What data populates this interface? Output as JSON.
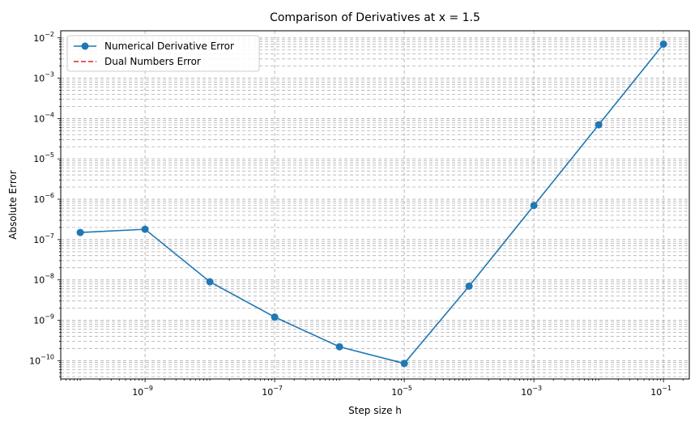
{
  "chart_data": {
    "type": "line",
    "title": "Comparison of Derivatives at x = 1.5",
    "xlabel": "Step size h",
    "ylabel": "Absolute Error",
    "xscale": "log",
    "yscale": "log",
    "xlim": [
      5e-11,
      0.25
    ],
    "ylim": [
      3.5e-11,
      0.015
    ],
    "grid": true,
    "legend_position": "top-left",
    "x_ticks": [
      {
        "value": 1e-09,
        "base": "10",
        "exp": "−9"
      },
      {
        "value": 1e-07,
        "base": "10",
        "exp": "−7"
      },
      {
        "value": 1e-05,
        "base": "10",
        "exp": "−5"
      },
      {
        "value": 0.001,
        "base": "10",
        "exp": "−3"
      },
      {
        "value": 0.1,
        "base": "10",
        "exp": "−1"
      }
    ],
    "y_ticks": [
      {
        "value": 1e-10,
        "base": "10",
        "exp": "−10"
      },
      {
        "value": 1e-09,
        "base": "10",
        "exp": "−9"
      },
      {
        "value": 1e-08,
        "base": "10",
        "exp": "−8"
      },
      {
        "value": 1e-07,
        "base": "10",
        "exp": "−7"
      },
      {
        "value": 1e-06,
        "base": "10",
        "exp": "−6"
      },
      {
        "value": 1e-05,
        "base": "10",
        "exp": "−5"
      },
      {
        "value": 0.0001,
        "base": "10",
        "exp": "−4"
      },
      {
        "value": 0.001,
        "base": "10",
        "exp": "−3"
      },
      {
        "value": 0.01,
        "base": "10",
        "exp": "−2"
      }
    ],
    "series": [
      {
        "name": "Numerical Derivative Error",
        "color": "#1f77b4",
        "style": "solid",
        "marker": "circle",
        "x": [
          1e-10,
          1e-09,
          1e-08,
          1e-07,
          1e-06,
          1e-05,
          0.0001,
          0.001,
          0.01,
          0.1
        ],
        "y": [
          1.5e-07,
          1.8e-07,
          9e-09,
          1.2e-09,
          2.2e-10,
          8.5e-11,
          7e-09,
          7e-07,
          7e-05,
          0.007
        ]
      },
      {
        "name": "Dual Numbers Error",
        "color": "#d62728",
        "style": "dashed",
        "marker": "none",
        "x": [],
        "y": []
      }
    ]
  }
}
